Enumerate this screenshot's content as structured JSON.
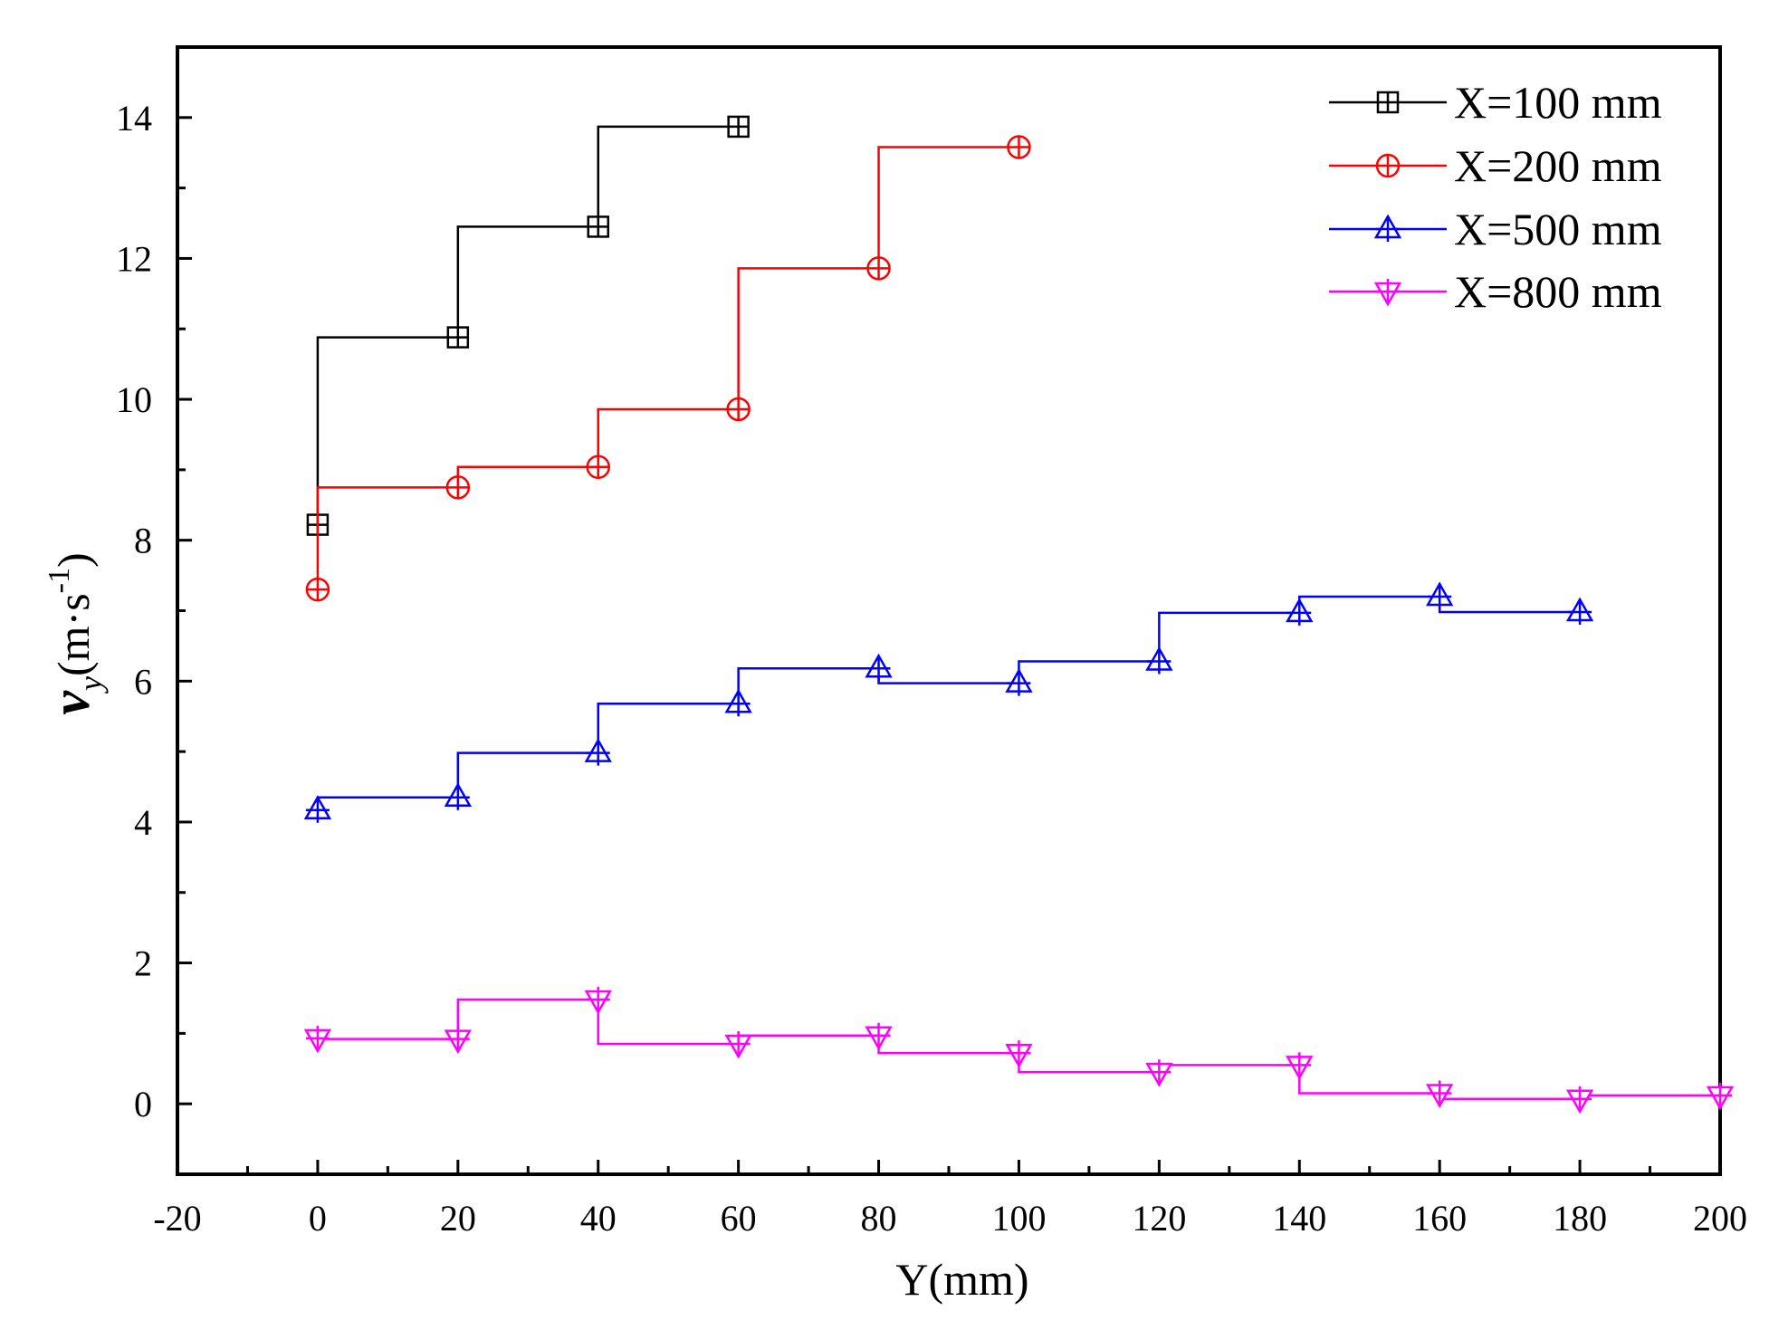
{
  "chart_data": {
    "type": "line",
    "style": "step",
    "xlabel": "Y(mm)",
    "ylabel": {
      "main": "v",
      "sub": "y",
      "unit": "(m·s",
      "sup": "-1",
      "close": ")"
    },
    "xlim": [
      -20,
      200
    ],
    "ylim": [
      -1,
      15
    ],
    "xticks": [
      -20,
      0,
      20,
      40,
      60,
      80,
      100,
      120,
      140,
      160,
      180,
      200
    ],
    "yticks": [
      0,
      2,
      4,
      6,
      8,
      10,
      12,
      14
    ],
    "legend_position": "top-right",
    "series": [
      {
        "name": "X=100 mm",
        "color": "#000000",
        "marker": "square-cross",
        "x": [
          0,
          20,
          40,
          60
        ],
        "y": [
          8.22,
          10.88,
          12.45,
          13.87
        ]
      },
      {
        "name": "X=200 mm",
        "color": "#ff0000",
        "marker": "circle-cross",
        "x": [
          0,
          20,
          40,
          60,
          80,
          100
        ],
        "y": [
          7.3,
          8.75,
          9.04,
          9.86,
          11.86,
          13.58
        ]
      },
      {
        "name": "X=500 mm",
        "color": "#0000ff",
        "marker": "triangle-up",
        "x": [
          0,
          20,
          40,
          60,
          80,
          100,
          120,
          140,
          160,
          180
        ],
        "y": [
          4.17,
          4.35,
          4.98,
          5.68,
          6.18,
          5.97,
          6.28,
          6.97,
          7.2,
          6.98
        ]
      },
      {
        "name": "X=800 mm",
        "color": "#ff00ff",
        "marker": "triangle-down",
        "x": [
          0,
          20,
          40,
          60,
          80,
          100,
          120,
          140,
          160,
          180,
          200
        ],
        "y": [
          0.93,
          0.92,
          1.48,
          0.85,
          0.97,
          0.72,
          0.45,
          0.55,
          0.15,
          0.07,
          0.12
        ]
      }
    ]
  }
}
